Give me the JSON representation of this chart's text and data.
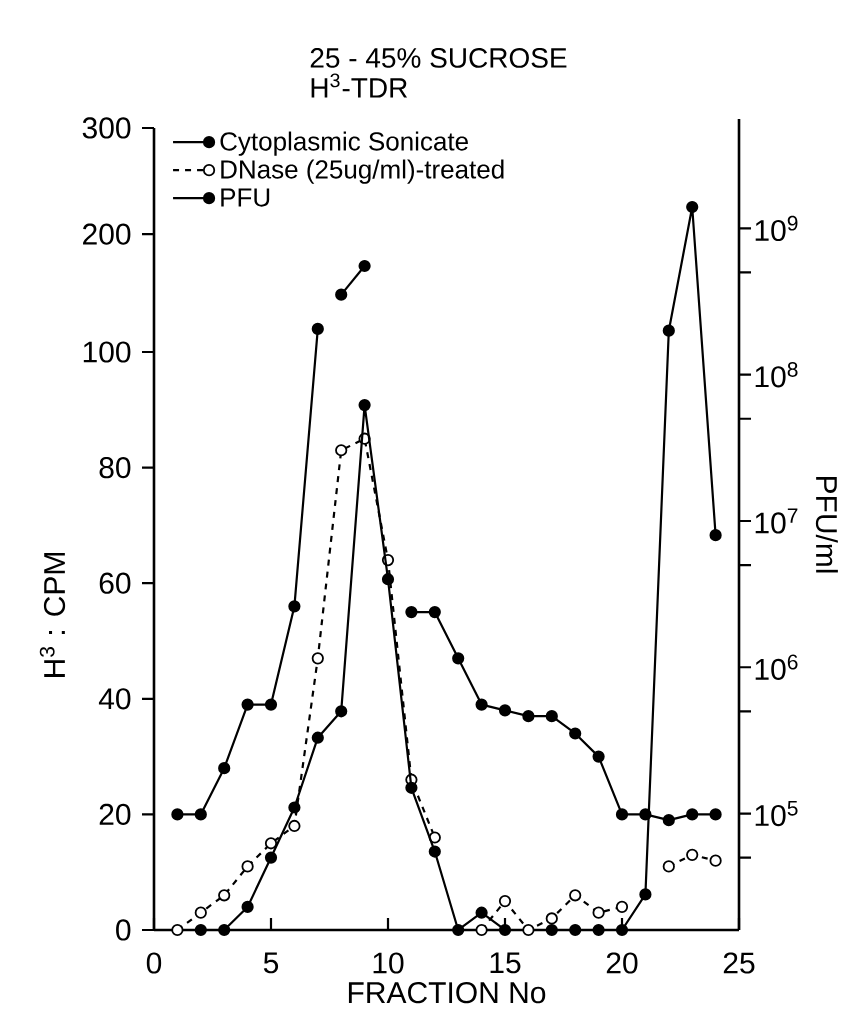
{
  "chart_data": [
    {
      "type": "line",
      "xlabel": "FRACTION No",
      "ylabel": "H$^{3}$ : CPM",
      "xlim": [
        0,
        25
      ],
      "xticks": [
        0,
        5,
        10,
        15,
        20,
        25
      ],
      "ylim": [
        0,
        109
      ],
      "yticks": [
        0,
        20,
        40,
        60,
        80,
        100
      ],
      "x": [
        1,
        2,
        3,
        4,
        5,
        6,
        7,
        8,
        9,
        10,
        11,
        12,
        13,
        14,
        15,
        16,
        17,
        18,
        19,
        20,
        21,
        22,
        23,
        24
      ],
      "marker": "circle",
      "series": [
        {
          "name": "Cytoplasmic Sonicate",
          "color": "#000000",
          "line_style": "solid",
          "values": [
            20,
            20,
            28,
            39,
            39,
            56,
            104,
            null,
            null,
            null,
            55,
            55,
            47,
            39,
            38,
            37,
            37,
            34,
            30,
            20,
            20,
            19,
            20,
            20
          ]
        },
        {
          "name": "DNase (25ug/ml)-treated",
          "color": "#000000",
          "line_style": "dashed",
          "values": [
            0,
            3,
            6,
            11,
            15,
            18,
            47,
            83,
            85,
            64,
            26,
            16,
            null,
            0,
            5,
            0,
            2,
            6,
            3,
            4,
            null,
            11,
            13,
            12
          ]
        }
      ]
    },
    {
      "type": "line",
      "title": "25 - 45% SUCROSE",
      "subtitle": "H$^{3}$-TDR",
      "xlim": [
        0,
        25
      ],
      "ylim": [
        138,
        300
      ],
      "yticks": [
        200,
        300
      ],
      "tick_labels": "y",
      "x": [
        8,
        9
      ],
      "marker": "circle",
      "series": [
        {
          "color": "#000000",
          "line_style": "solid",
          "values": [
            143,
            170
          ]
        }
      ]
    },
    {
      "type": "line",
      "y2label": "PFU/ml",
      "xlim": [
        0,
        25
      ],
      "y2lim": [
        16000,
        5600000000
      ],
      "log": "y2",
      "tick_labels": "y",
      "legend": "top left",
      "marker": "circle",
      "y2ticks": [
        {
          "value": 50000,
          "label": null
        },
        {
          "value": 100000,
          "label": "10$^{5}$"
        },
        {
          "value": 500000,
          "label": null
        },
        {
          "value": 1000000,
          "label": "10$^{6}$"
        },
        {
          "value": 5000000,
          "label": null
        },
        {
          "value": 10000000,
          "label": "10$^{7}$"
        },
        {
          "value": 50000000,
          "label": null
        },
        {
          "value": 100000000,
          "label": "10$^{8}$"
        },
        {
          "value": 500000000,
          "label": null
        },
        {
          "value": 1000000000,
          "label": "10$^{9}$"
        }
      ],
      "x": [
        2,
        3,
        4,
        5,
        6,
        7,
        8,
        9,
        10,
        11,
        12,
        13,
        14,
        15,
        16,
        17,
        18,
        19,
        20,
        21,
        22,
        23,
        24
      ],
      "series": [
        {
          "name": "PFU",
          "color": "#000000",
          "line_style": "solid",
          "axis": "y2",
          "values": [
            16000,
            16000,
            23000,
            50000,
            110000,
            330000,
            500000,
            62000000,
            4000000,
            150000,
            55000,
            16000,
            21000,
            16000,
            null,
            16000,
            16000,
            16000,
            16000,
            28000,
            200000000,
            1400000000,
            8000000
          ]
        }
      ]
    }
  ]
}
